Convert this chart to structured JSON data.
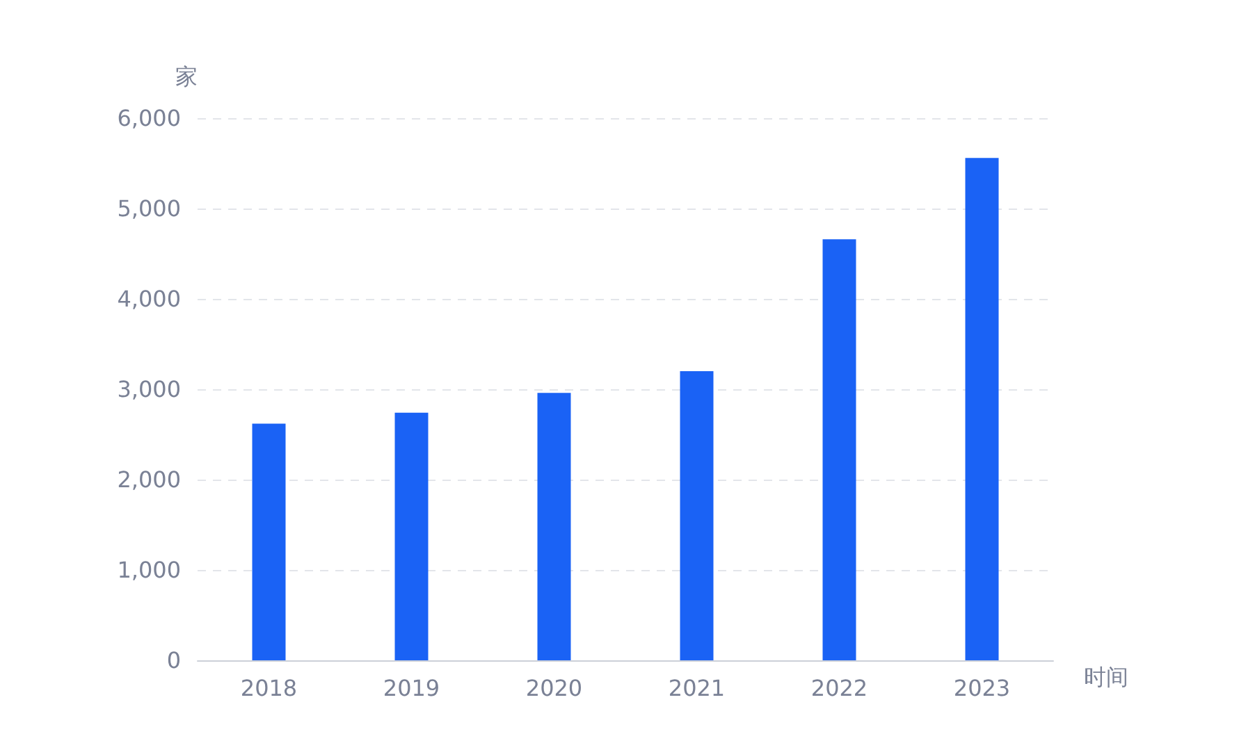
{
  "chart_data": {
    "type": "bar",
    "ylabel": "家",
    "xlabel": "时间",
    "categories": [
      "2018",
      "2019",
      "2020",
      "2021",
      "2022",
      "2023"
    ],
    "values": [
      2620,
      2740,
      2960,
      3200,
      4660,
      5560
    ],
    "color": "#1a62f5",
    "ylim": [
      0,
      6000
    ],
    "yticks": [
      0,
      {
        "value": 1000,
        "label": "1,000"
      },
      {
        "value": 2000,
        "label": "2,000"
      },
      {
        "value": 3000,
        "label": "3,000"
      },
      {
        "value": 4000,
        "label": "4,000"
      },
      {
        "value": 5000,
        "label": "5,000"
      },
      {
        "value": 6000,
        "label": "6,000"
      }
    ],
    "grid": "y"
  }
}
